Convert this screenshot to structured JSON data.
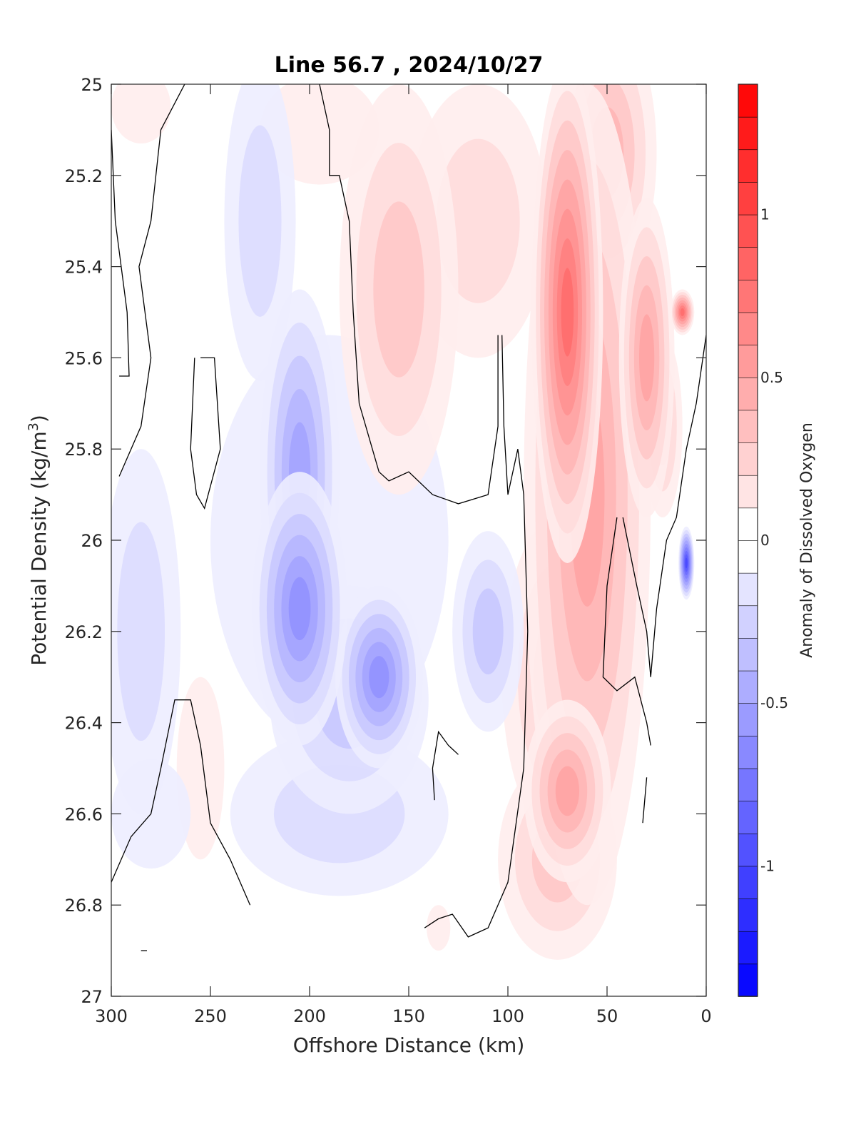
{
  "chart_data": {
    "type": "contourf",
    "title": "Line 56.7 , 2024/10/27",
    "xlabel": "Offshore Distance (km)",
    "ylabel_main": "Potential Density (kg/m",
    "ylabel_sup": "3",
    "ylabel_close": ")",
    "xlim": [
      300,
      0
    ],
    "ylim": [
      25,
      27
    ],
    "x_reversed": true,
    "y_reversed": true,
    "xticks": [
      300,
      250,
      200,
      150,
      100,
      50,
      0
    ],
    "xtick_labels": [
      "300",
      "250",
      "200",
      "150",
      "100",
      "50",
      "0"
    ],
    "yticks": [
      25,
      25.2,
      25.4,
      25.6,
      25.8,
      26,
      26.2,
      26.4,
      26.6,
      26.8,
      27
    ],
    "ytick_labels": [
      "25",
      "25.2",
      "25.4",
      "25.6",
      "25.8",
      "26",
      "26.2",
      "26.4",
      "26.6",
      "26.8",
      "27"
    ],
    "colorbar": {
      "label": "Anomaly of Dissolved Oxygen",
      "range": [
        -1.4,
        1.4
      ],
      "step": 0.1,
      "ticks": [
        -1,
        -0.5,
        0,
        0.5,
        1
      ],
      "tick_labels": [
        "-1",
        "-0.5",
        "0",
        "0.5",
        "1"
      ],
      "colormap": "blue-white-red"
    },
    "zero_contour": true,
    "grid": false
  }
}
